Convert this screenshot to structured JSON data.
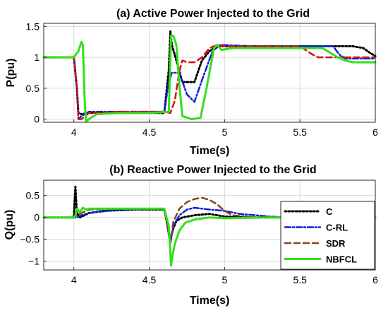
{
  "chart_data": [
    {
      "type": "line",
      "title": "(a) Active Power Injected to  the Grid",
      "xlabel": "Time(s)",
      "ylabel": "P(pu)",
      "xlim": [
        3.8,
        6.0
      ],
      "ylim": [
        -0.05,
        1.55
      ],
      "xticks": [
        4,
        4.5,
        5,
        5.5,
        6
      ],
      "yticks": [
        0,
        0.5,
        1,
        1.5
      ],
      "xtick_labels": [
        "4",
        "4.5",
        "5",
        "5.5",
        "6"
      ],
      "ytick_labels": [
        "0",
        "0.5",
        "1",
        "1.5"
      ],
      "grid": true,
      "series": [
        {
          "name": "C",
          "color": "#000000",
          "style": "dotted",
          "x": [
            3.8,
            4.0,
            4.02,
            4.03,
            4.05,
            4.1,
            4.2,
            4.4,
            4.6,
            4.63,
            4.64,
            4.65,
            4.68,
            4.72,
            4.8,
            4.85,
            4.9,
            4.95,
            5.0,
            5.3,
            5.6,
            5.85,
            5.92,
            5.96,
            6.0
          ],
          "y": [
            1.0,
            1.0,
            0.5,
            0.1,
            0.08,
            0.1,
            0.11,
            0.1,
            0.1,
            0.8,
            1.42,
            1.2,
            0.95,
            0.6,
            0.6,
            0.95,
            1.1,
            1.18,
            1.18,
            1.18,
            1.18,
            1.18,
            1.15,
            1.08,
            1.02
          ]
        },
        {
          "name": "C-RL",
          "color": "#0a1fd8",
          "style": "dashdot",
          "x": [
            3.8,
            4.0,
            4.02,
            4.03,
            4.05,
            4.1,
            4.3,
            4.6,
            4.63,
            4.65,
            4.7,
            4.75,
            4.8,
            4.86,
            4.92,
            4.97,
            5.2,
            5.5,
            5.72,
            5.76,
            5.8,
            6.0
          ],
          "y": [
            1.0,
            1.0,
            0.5,
            0.0,
            0.05,
            0.12,
            0.12,
            0.12,
            0.6,
            0.75,
            0.75,
            0.4,
            0.28,
            0.7,
            1.1,
            1.2,
            1.18,
            1.18,
            1.18,
            1.05,
            0.98,
            0.98
          ]
        },
        {
          "name": "SDR",
          "color": "#d81010",
          "style": "dashed",
          "x": [
            3.8,
            4.0,
            4.02,
            4.03,
            4.05,
            4.1,
            4.3,
            4.6,
            4.64,
            4.67,
            4.7,
            4.72,
            4.75,
            4.8,
            4.85,
            4.9,
            4.95,
            5.0,
            5.5,
            5.58,
            5.62,
            5.8,
            6.0
          ],
          "y": [
            1.0,
            1.0,
            0.5,
            0.0,
            0.0,
            0.1,
            0.12,
            0.12,
            0.1,
            0.3,
            0.78,
            0.95,
            0.92,
            0.92,
            1.0,
            1.15,
            1.2,
            1.18,
            1.18,
            1.05,
            1.0,
            1.0,
            1.0
          ]
        },
        {
          "name": "NBFCL",
          "color": "#33e01a",
          "style": "solid",
          "x": [
            3.8,
            4.0,
            4.03,
            4.05,
            4.06,
            4.07,
            4.08,
            4.1,
            4.15,
            4.3,
            4.5,
            4.63,
            4.645,
            4.66,
            4.68,
            4.7,
            4.72,
            4.78,
            4.84,
            4.88,
            4.93,
            4.95,
            4.98,
            5.05,
            5.3,
            5.65,
            5.75,
            5.8,
            5.85,
            6.0
          ],
          "y": [
            1.0,
            1.0,
            1.1,
            1.25,
            1.2,
            0.4,
            -0.04,
            0.0,
            0.08,
            0.1,
            0.1,
            0.12,
            1.35,
            1.35,
            1.2,
            0.55,
            0.05,
            0.0,
            0.02,
            0.5,
            1.15,
            1.2,
            1.12,
            1.15,
            1.15,
            1.15,
            1.0,
            0.95,
            0.92,
            0.92
          ]
        }
      ]
    },
    {
      "type": "line",
      "title": "(b) Reactive Power Injected to  the Grid",
      "xlabel": "Time(s)",
      "ylabel": "Q(pu)",
      "xlim": [
        3.8,
        6.0
      ],
      "ylim": [
        -1.2,
        0.85
      ],
      "xticks": [
        4,
        4.5,
        5,
        5.5,
        6
      ],
      "yticks": [
        -1,
        -0.5,
        0,
        0.5
      ],
      "xtick_labels": [
        "4",
        "4.5",
        "5",
        "5.5",
        "6"
      ],
      "ytick_labels": [
        "−1",
        "−0.5",
        "0",
        "0.5"
      ],
      "grid": true,
      "legend_position": "bottom-right",
      "series": [
        {
          "name": "C",
          "color": "#000000",
          "style": "dotted",
          "x": [
            3.8,
            4.0,
            4.005,
            4.01,
            4.015,
            4.02,
            4.04,
            4.1,
            4.2,
            4.4,
            4.6,
            4.64,
            4.66,
            4.68,
            4.72,
            4.8,
            4.9,
            5.0,
            5.2,
            5.4,
            6.0
          ],
          "y": [
            0.0,
            0.0,
            0.4,
            0.7,
            0.4,
            0.1,
            0.0,
            0.1,
            0.15,
            0.18,
            0.18,
            -0.5,
            -0.25,
            -0.08,
            0.0,
            0.05,
            0.08,
            0.02,
            0.0,
            0.0,
            0.0
          ]
        },
        {
          "name": "C-RL",
          "color": "#0a1fd8",
          "style": "dashdot",
          "x": [
            3.8,
            4.0,
            4.02,
            4.05,
            4.1,
            4.3,
            4.6,
            4.64,
            4.66,
            4.7,
            4.75,
            4.8,
            4.85,
            4.9,
            5.0,
            5.1,
            5.3,
            5.4,
            6.0
          ],
          "y": [
            0.0,
            0.0,
            0.0,
            0.05,
            0.1,
            0.18,
            0.2,
            -0.6,
            -0.2,
            0.05,
            0.18,
            0.22,
            0.2,
            0.18,
            0.15,
            0.08,
            0.02,
            0.0,
            0.0
          ]
        },
        {
          "name": "SDR",
          "color": "#8b4513",
          "style": "dashed",
          "x": [
            3.8,
            4.0,
            4.02,
            4.05,
            4.1,
            4.3,
            4.6,
            4.64,
            4.66,
            4.7,
            4.75,
            4.8,
            4.85,
            4.9,
            4.95,
            5.0,
            5.05,
            5.2,
            5.35,
            6.0
          ],
          "y": [
            0.0,
            0.0,
            0.05,
            0.1,
            0.18,
            0.2,
            0.2,
            -0.6,
            -0.1,
            0.2,
            0.35,
            0.42,
            0.45,
            0.4,
            0.3,
            0.15,
            0.05,
            0.0,
            0.0,
            0.0
          ]
        },
        {
          "name": "NBFCL",
          "color": "#33e01a",
          "style": "solid",
          "x": [
            3.8,
            4.0,
            4.01,
            4.02,
            4.04,
            4.06,
            4.08,
            4.1,
            4.2,
            4.4,
            4.6,
            4.63,
            4.645,
            4.655,
            4.67,
            4.7,
            4.74,
            4.8,
            4.9,
            5.0,
            5.3,
            5.6,
            6.0
          ],
          "y": [
            0.0,
            0.0,
            0.05,
            0.2,
            0.12,
            0.22,
            0.18,
            0.2,
            0.2,
            0.2,
            0.2,
            -0.2,
            -1.1,
            -0.85,
            -0.6,
            -0.3,
            -0.12,
            -0.05,
            0.0,
            -0.02,
            0.0,
            0.0,
            0.0
          ]
        }
      ]
    }
  ]
}
